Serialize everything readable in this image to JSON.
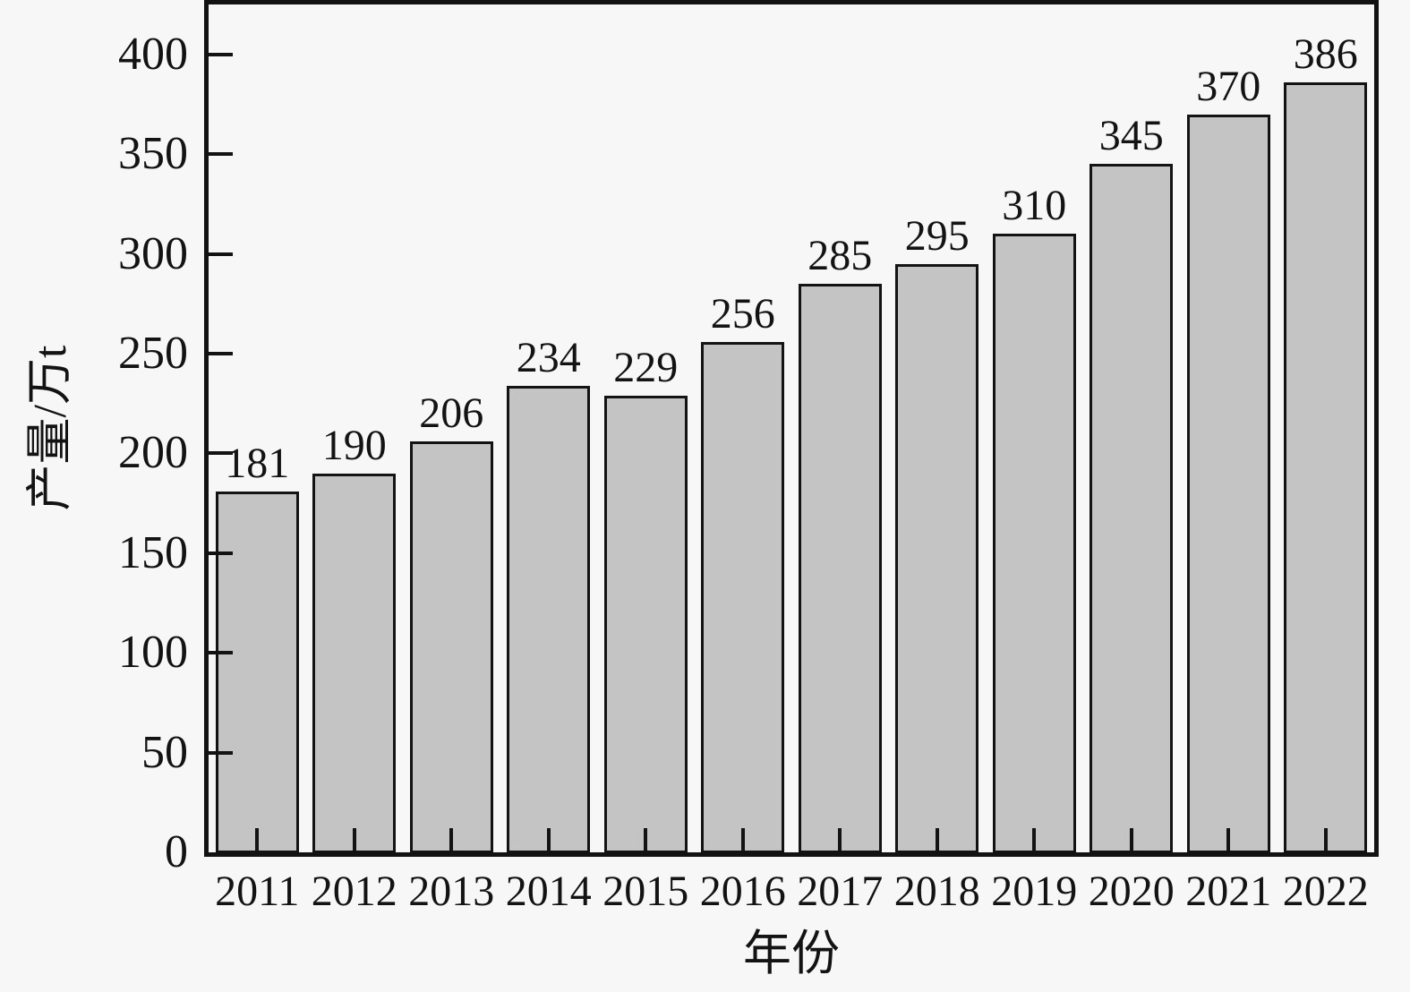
{
  "chart_data": {
    "type": "bar",
    "title": "",
    "xlabel": "年份",
    "ylabel": "产量/万t",
    "categories": [
      "2011",
      "2012",
      "2013",
      "2014",
      "2015",
      "2016",
      "2017",
      "2018",
      "2019",
      "2020",
      "2021",
      "2022"
    ],
    "values": [
      181,
      190,
      206,
      234,
      229,
      256,
      285,
      295,
      310,
      345,
      370,
      386
    ],
    "bar_labels": [
      "181",
      "190",
      "206",
      "234",
      "229",
      "256",
      "285",
      "295",
      "310",
      "345",
      "370",
      "386"
    ],
    "yticks": [
      0,
      50,
      100,
      150,
      200,
      250,
      300,
      350,
      400
    ],
    "ylim": [
      0,
      425
    ],
    "grid": false,
    "legend": "none",
    "bar_label_position": "above",
    "tick_direction": "in",
    "colors": {
      "background": "#f7f7f7",
      "bar_fill": "#c4c4c4",
      "bar_border": "#131313",
      "axis": "#131313",
      "text": "#131313"
    }
  }
}
